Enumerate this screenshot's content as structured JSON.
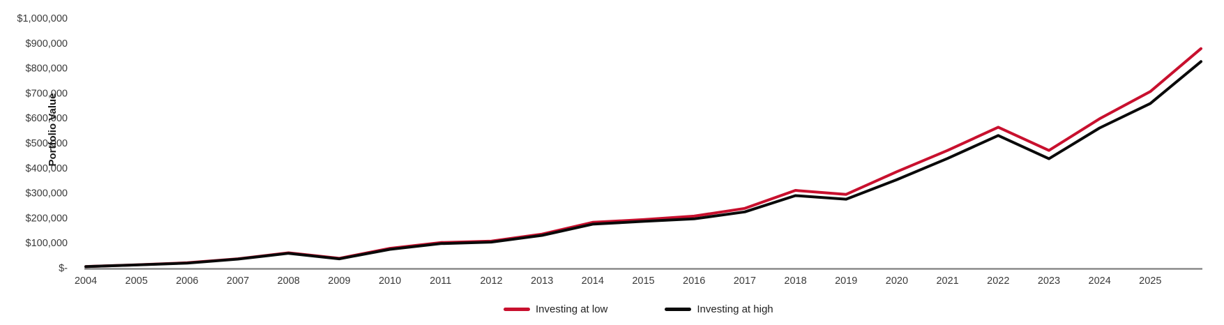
{
  "chart": {
    "ylabel": "Portfolio Value",
    "legend": {
      "low_label": "Investing at low",
      "high_label": "Investing at high",
      "low_color": "#c8102e",
      "high_color": "#0a0a0a"
    },
    "axis_color": "#7f7f7f"
  },
  "chart_data": {
    "type": "line",
    "title": "",
    "xlabel": "",
    "ylabel": "Portfolio Value",
    "ylim": [
      0,
      1000000
    ],
    "grid": false,
    "legend_position": "bottom",
    "y_ticks": [
      {
        "value": 1000000,
        "label": "$1,000,000"
      },
      {
        "value": 900000,
        "label": "$900,000"
      },
      {
        "value": 800000,
        "label": "$800,000"
      },
      {
        "value": 700000,
        "label": "$700,000"
      },
      {
        "value": 600000,
        "label": "$600,000"
      },
      {
        "value": 500000,
        "label": "$500,000"
      },
      {
        "value": 400000,
        "label": "$400,000"
      },
      {
        "value": 300000,
        "label": "$300,000"
      },
      {
        "value": 200000,
        "label": "$200,000"
      },
      {
        "value": 100000,
        "label": "$100,000"
      },
      {
        "value": 0,
        "label": "$-"
      }
    ],
    "x_tick_labels": [
      "2004",
      "2005",
      "2006",
      "2007",
      "2008",
      "2009",
      "2010",
      "2011",
      "2012",
      "2013",
      "2014",
      "2015",
      "2016",
      "2017",
      "2018",
      "2019",
      "2020",
      "2021",
      "2022",
      "2023",
      "2024",
      "2025"
    ],
    "x": [
      2004,
      2005,
      2006,
      2007,
      2008,
      2009,
      2010,
      2011,
      2012,
      2013,
      2014,
      2015,
      2016,
      2017,
      2018,
      2019,
      2020,
      2021,
      2022,
      2023,
      2024,
      2025,
      2026
    ],
    "series": [
      {
        "name": "Investing at low",
        "color": "#c8102e",
        "values": [
          5000,
          12000,
          20000,
          36000,
          60000,
          38000,
          78000,
          101000,
          107000,
          135000,
          182000,
          193000,
          207000,
          238000,
          310000,
          294000,
          385000,
          470000,
          563000,
          470000,
          597000,
          706000,
          878000
        ]
      },
      {
        "name": "Investing at high",
        "color": "#0a0a0a",
        "values": [
          4800,
          11500,
          19000,
          35000,
          58000,
          36000,
          74000,
          97000,
          103000,
          130000,
          175000,
          186000,
          196000,
          224000,
          289000,
          275000,
          353000,
          438000,
          530000,
          437000,
          560000,
          658000,
          826000
        ]
      }
    ]
  }
}
